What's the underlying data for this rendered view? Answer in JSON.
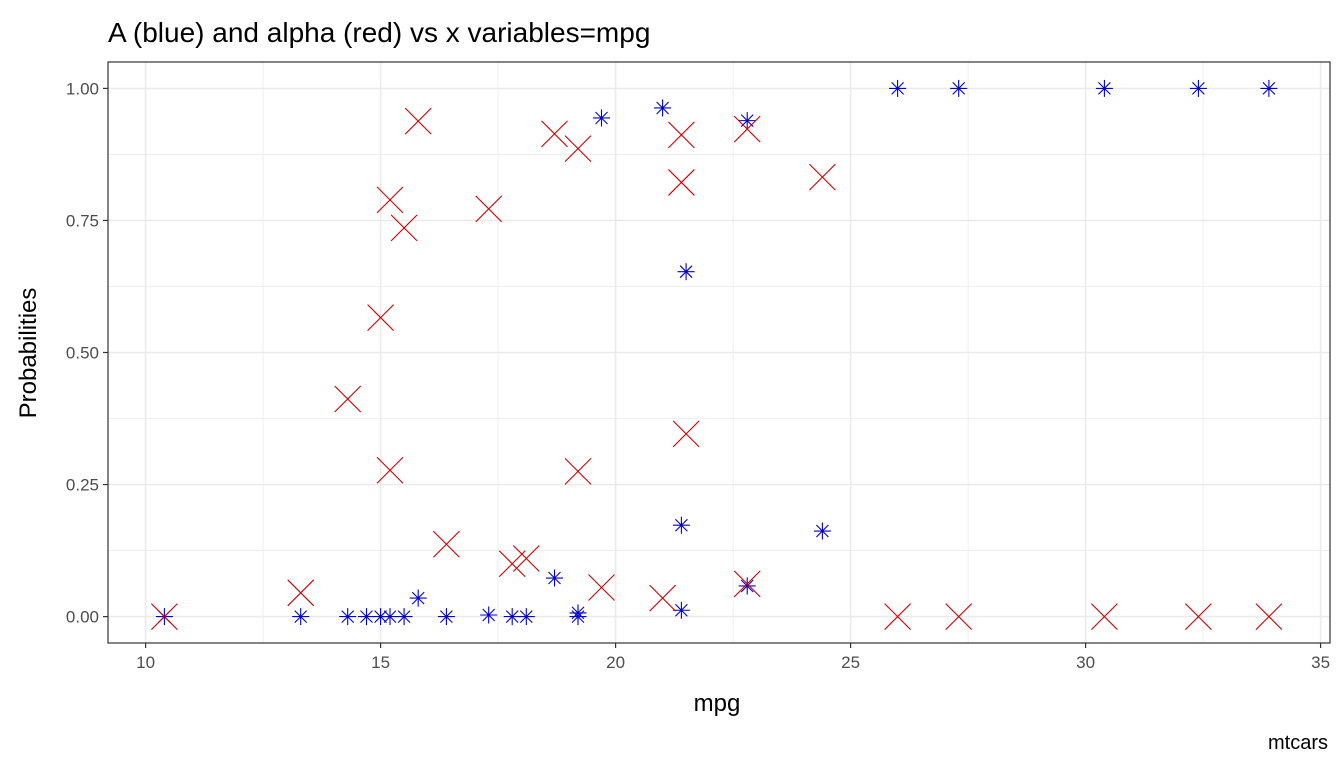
{
  "chart_data": {
    "type": "scatter",
    "title": "A (blue) and alpha (red) vs x variables=mpg",
    "xlabel": "mpg",
    "ylabel": "Probabilities",
    "caption": "mtcars",
    "xlim": [
      9.2,
      35.2
    ],
    "ylim": [
      -0.05,
      1.05
    ],
    "x_ticks": [
      10,
      15,
      20,
      25,
      30,
      35
    ],
    "x_tick_labels": [
      "10",
      "15",
      "20",
      "25",
      "30",
      "35"
    ],
    "y_ticks": [
      0,
      0.25,
      0.5,
      0.75,
      1
    ],
    "y_tick_labels": [
      "0.00",
      "0.25",
      "0.50",
      "0.75",
      "1.00"
    ],
    "grid": true,
    "colors": {
      "A": "#0000cc",
      "alpha": "#cc0000",
      "grid": "#ebebeb",
      "border": "#333333"
    },
    "series": [
      {
        "marker": "asterisk",
        "color": "#0000cc",
        "points": [
          [
            10.4,
            0.0
          ],
          [
            13.3,
            0.0
          ],
          [
            14.3,
            0.0
          ],
          [
            14.7,
            0.0
          ],
          [
            15.0,
            0.0
          ],
          [
            15.2,
            0.0
          ],
          [
            15.5,
            0.0
          ],
          [
            15.8,
            0.035
          ],
          [
            16.4,
            0.0
          ],
          [
            17.3,
            0.003
          ],
          [
            17.8,
            0.0
          ],
          [
            18.1,
            0.0
          ],
          [
            18.7,
            0.073
          ],
          [
            19.2,
            0.0
          ],
          [
            19.2,
            0.007
          ],
          [
            19.7,
            0.944
          ],
          [
            21.0,
            0.963
          ],
          [
            21.4,
            0.012
          ],
          [
            21.4,
            0.173
          ],
          [
            21.5,
            0.653
          ],
          [
            22.8,
            0.058
          ],
          [
            22.8,
            0.939
          ],
          [
            24.4,
            0.162
          ],
          [
            26.0,
            1.0
          ],
          [
            27.3,
            1.0
          ],
          [
            30.4,
            1.0
          ],
          [
            32.4,
            1.0
          ],
          [
            33.9,
            1.0
          ]
        ]
      },
      {
        "marker": "x",
        "color": "#cc0000",
        "points": [
          [
            10.4,
            0.0
          ],
          [
            13.3,
            0.045
          ],
          [
            14.3,
            0.412
          ],
          [
            15.0,
            0.566
          ],
          [
            15.2,
            0.789
          ],
          [
            15.2,
            0.277
          ],
          [
            15.5,
            0.736
          ],
          [
            15.8,
            0.938
          ],
          [
            16.4,
            0.137
          ],
          [
            17.3,
            0.772
          ],
          [
            17.8,
            0.1
          ],
          [
            18.1,
            0.11
          ],
          [
            18.7,
            0.914
          ],
          [
            19.2,
            0.886
          ],
          [
            19.2,
            0.275
          ],
          [
            19.7,
            0.055
          ],
          [
            21.0,
            0.035
          ],
          [
            21.4,
            0.912
          ],
          [
            21.4,
            0.822
          ],
          [
            21.5,
            0.346
          ],
          [
            22.8,
            0.923
          ],
          [
            22.8,
            0.062
          ],
          [
            24.4,
            0.832
          ],
          [
            26.0,
            0.0
          ],
          [
            27.3,
            0.0
          ],
          [
            30.4,
            0.0
          ],
          [
            32.4,
            0.0
          ],
          [
            33.9,
            0.0
          ]
        ]
      }
    ]
  }
}
